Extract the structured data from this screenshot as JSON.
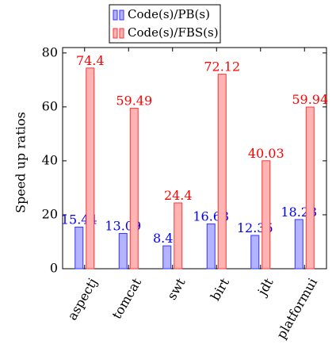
{
  "chart_data": {
    "type": "bar",
    "ylabel": "Speed up ratios",
    "xlabel": "",
    "title": "",
    "ylim": [
      0,
      82
    ],
    "yticks": [
      0,
      20,
      40,
      60,
      80
    ],
    "categories": [
      "aspectj",
      "tomcat",
      "swt",
      "birt",
      "jdt",
      "platformui"
    ],
    "series": [
      {
        "name": "Code(s)/PB(s)",
        "values": [
          15.44,
          13.09,
          8.49,
          16.63,
          12.35,
          18.23
        ],
        "labels": [
          "15.44",
          "13.09",
          "8.49",
          "16.63",
          "12.35",
          "18.23"
        ],
        "fill": "#b3b3ff",
        "stroke": "#3333ff",
        "label_color": "#0000ff"
      },
      {
        "name": "Code(s)/FBS(s)",
        "values": [
          74.4,
          59.49,
          24.4,
          72.12,
          40.03,
          59.94
        ],
        "labels": [
          "74.4",
          "59.49",
          "24.4",
          "72.12",
          "40.03",
          "59.94"
        ],
        "fill": "#ffb3b3",
        "stroke": "#ff3333",
        "label_color": "#ff0000"
      }
    ],
    "legend": "top-center",
    "grid": false
  }
}
